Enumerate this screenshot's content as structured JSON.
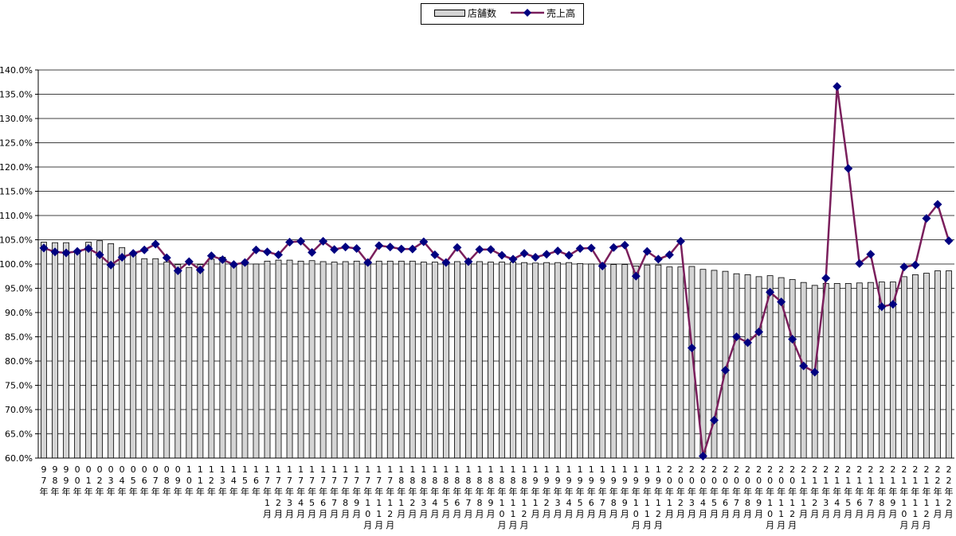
{
  "legend": {
    "bar_label": "店舗数",
    "line_label": "売上高"
  },
  "colors": {
    "bar_fill": "#d4d4d4",
    "bar_stroke": "#000000",
    "line": "#7a1f5c",
    "marker": "#000080"
  },
  "chart_data": {
    "type": "bar",
    "ylim": [
      60,
      140
    ],
    "ytick_step": 5,
    "ytick_format": "percent_1dp",
    "grid": "horizontal",
    "legend_position": "top",
    "categories": [
      "97年",
      "98年",
      "99年",
      "00年",
      "01年",
      "02年",
      "03年",
      "04年",
      "05年",
      "06年",
      "07年",
      "08年",
      "09年",
      "10年",
      "11年",
      "12年",
      "13年",
      "14年",
      "15年",
      "16年",
      "17年1月",
      "17年2月",
      "17年3月",
      "17年4月",
      "17年5月",
      "17年6月",
      "17年7月",
      "17年8月",
      "17年9月",
      "17年10月",
      "17年11月",
      "17年12月",
      "18年1月",
      "18年2月",
      "18年3月",
      "18年4月",
      "18年5月",
      "18年6月",
      "18年7月",
      "18年8月",
      "18年9月",
      "18年10月",
      "18年11月",
      "18年12月",
      "19年1月",
      "19年2月",
      "19年3月",
      "19年4月",
      "19年5月",
      "19年6月",
      "19年7月",
      "19年8月",
      "19年9月",
      "19年10月",
      "19年11月",
      "19年12月",
      "20年1月",
      "20年2月",
      "20年3月",
      "20年4月",
      "20年5月",
      "20年6月",
      "20年7月",
      "20年8月",
      "20年9月",
      "20年10月",
      "20年11月",
      "20年12月",
      "21年1月",
      "21年2月",
      "21年3月",
      "21年4月",
      "21年5月",
      "21年6月",
      "21年7月",
      "21年8月",
      "21年9月",
      "21年10月",
      "21年11月",
      "21年12月",
      "22年1月",
      "22年2月"
    ],
    "series": [
      {
        "name": "店舗数",
        "type": "bar",
        "values": [
          104.5,
          104.4,
          104.4,
          102.8,
          104.5,
          104.8,
          104.2,
          103.4,
          102.2,
          101.1,
          101.1,
          100.4,
          99.9,
          99.3,
          99.9,
          101.0,
          101.4,
          100.1,
          99.9,
          100.0,
          100.6,
          100.8,
          100.8,
          100.6,
          100.7,
          100.5,
          100.4,
          100.5,
          100.6,
          100.5,
          100.6,
          100.6,
          100.6,
          100.6,
          100.4,
          100.4,
          100.3,
          100.5,
          100.6,
          100.5,
          100.4,
          100.4,
          100.4,
          100.3,
          100.2,
          100.3,
          100.3,
          100.3,
          100.1,
          100.0,
          100.0,
          99.9,
          99.9,
          99.6,
          99.8,
          99.8,
          99.4,
          99.4,
          99.5,
          98.9,
          98.7,
          98.5,
          98.0,
          97.8,
          97.4,
          97.6,
          97.2,
          96.8,
          96.2,
          95.6,
          96.0,
          96.0,
          96.0,
          96.1,
          96.2,
          96.3,
          96.3,
          97.4,
          97.8,
          98.1,
          98.6,
          98.6
        ]
      },
      {
        "name": "売上高",
        "type": "line",
        "values": [
          103.3,
          102.5,
          102.3,
          102.6,
          103.2,
          101.9,
          99.8,
          101.4,
          102.2,
          102.9,
          104.1,
          101.3,
          98.6,
          100.5,
          98.8,
          101.7,
          100.9,
          99.9,
          100.3,
          102.9,
          102.5,
          101.9,
          104.5,
          104.7,
          102.4,
          104.7,
          103.0,
          103.5,
          103.2,
          100.3,
          103.8,
          103.5,
          103.1,
          103.1,
          104.6,
          101.9,
          100.3,
          103.4,
          100.5,
          103.0,
          103.0,
          101.8,
          101.0,
          102.2,
          101.4,
          102.0,
          102.7,
          101.8,
          103.2,
          103.3,
          99.6,
          103.4,
          103.9,
          97.5,
          102.6,
          101.0,
          101.9,
          104.7,
          82.7,
          60.4,
          67.8,
          78.1,
          85.0,
          83.8,
          86.0,
          94.2,
          92.2,
          84.5,
          79.0,
          77.7,
          97.1,
          136.6,
          119.7,
          100.1,
          102.0,
          91.2,
          91.7,
          99.4,
          99.8,
          109.4,
          112.3,
          104.8
        ]
      }
    ]
  }
}
